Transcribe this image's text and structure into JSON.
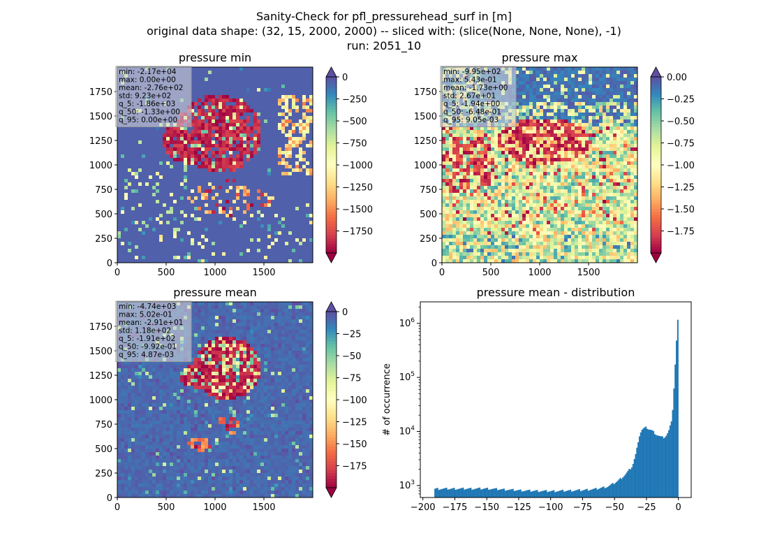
{
  "suptitle": {
    "line1": "Sanity-Check for pfl_pressurehead_surf in [m]",
    "line2": "original data shape: (32, 15, 2000, 2000) -- sliced with: (slice(None, None, None), -1)",
    "line3": "run: 2051_10"
  },
  "chart_data": [
    {
      "type": "heatmap",
      "title": "pressure min",
      "xlim": [
        0,
        2000
      ],
      "ylim": [
        0,
        2000
      ],
      "x_ticks": [
        0,
        500,
        1000,
        1500
      ],
      "y_ticks": [
        0,
        250,
        500,
        750,
        1000,
        1250,
        1500,
        1750
      ],
      "colormap": "Spectral",
      "colorbar": {
        "range": [
          -2000,
          0
        ],
        "ticks": [
          "0",
          "−250",
          "−500",
          "−750",
          "−1000",
          "−1250",
          "−1500",
          "−1750"
        ],
        "extend": "both"
      },
      "stats": [
        "min: -2.17e+04",
        "max: 0.00e+00",
        "mean: -2.76e+02",
        "std: 9.23e+02",
        "q_5: -1.86e+03",
        "q_50: -1.33e+00",
        "q_95: 0.00e+00"
      ]
    },
    {
      "type": "heatmap",
      "title": "pressure max",
      "xlim": [
        0,
        2000
      ],
      "ylim": [
        0,
        2000
      ],
      "x_ticks": [
        0,
        500,
        1000,
        1500
      ],
      "y_ticks": [
        0,
        250,
        500,
        750,
        1000,
        1250,
        1500,
        1750
      ],
      "colormap": "Spectral",
      "colorbar": {
        "range": [
          -2.0,
          0.0
        ],
        "ticks": [
          "0.00",
          "−0.25",
          "−0.50",
          "−0.75",
          "−1.00",
          "−1.25",
          "−1.50",
          "−1.75"
        ],
        "extend": "both"
      },
      "stats": [
        "min: -9.95e+02",
        "max: 5.43e-01",
        "mean: -1.73e+00",
        "std: 2.67e+01",
        "q_5: -1.94e+00",
        "q_50: -6.48e-01",
        "q_95: 9.05e-03"
      ]
    },
    {
      "type": "heatmap",
      "title": "pressure mean",
      "xlim": [
        0,
        2000
      ],
      "ylim": [
        0,
        2000
      ],
      "x_ticks": [
        0,
        500,
        1000,
        1500
      ],
      "y_ticks": [
        0,
        250,
        500,
        750,
        1000,
        1250,
        1500,
        1750
      ],
      "colormap": "Spectral",
      "colorbar": {
        "range": [
          -200,
          0
        ],
        "ticks": [
          "0",
          "−25",
          "−50",
          "−75",
          "−100",
          "−125",
          "−150",
          "−175"
        ],
        "extend": "both"
      },
      "stats": [
        "min: -4.74e+03",
        "max: 5.02e-01",
        "mean: -2.91e+01",
        "std: 1.18e+02",
        "q_5: -1.91e+02",
        "q_50: -9.92e-01",
        "q_95: 4.87e-03"
      ]
    },
    {
      "type": "bar",
      "title": "pressure mean - distribution",
      "ylabel": "# of occurrence",
      "xlabel": "",
      "log_y": true,
      "xlim": [
        -202,
        10
      ],
      "ylim": [
        600,
        2500000
      ],
      "x_ticks": [
        -200,
        -175,
        -150,
        -125,
        -100,
        -75,
        -50,
        -25,
        0
      ],
      "x_tick_labels": [
        "−200",
        "−175",
        "−150",
        "−125",
        "−100",
        "−75",
        "−50",
        "−25",
        "0"
      ],
      "y_ticks": [
        1000,
        10000,
        100000,
        1000000
      ],
      "bin_range": [
        -191,
        0
      ],
      "bin_width": 1.0,
      "profile_x": [
        -191,
        -150,
        -120,
        -100,
        -85,
        -75,
        -65,
        -55,
        -48,
        -42,
        -36,
        -33,
        -31,
        -29,
        -27,
        -25,
        -23,
        -21,
        -19,
        -17,
        -15,
        -13,
        -11,
        -9,
        -7,
        -5,
        -4,
        -3,
        -2,
        -1,
        0
      ],
      "profile_y": [
        950,
        960,
        880,
        860,
        880,
        900,
        940,
        1050,
        1300,
        1700,
        2500,
        4500,
        8500,
        11500,
        12500,
        13000,
        12000,
        11500,
        10500,
        9500,
        9000,
        8500,
        8500,
        9500,
        12000,
        20000,
        40000,
        120000,
        300000,
        900000,
        1700000
      ],
      "color": "#1f77b4"
    }
  ]
}
